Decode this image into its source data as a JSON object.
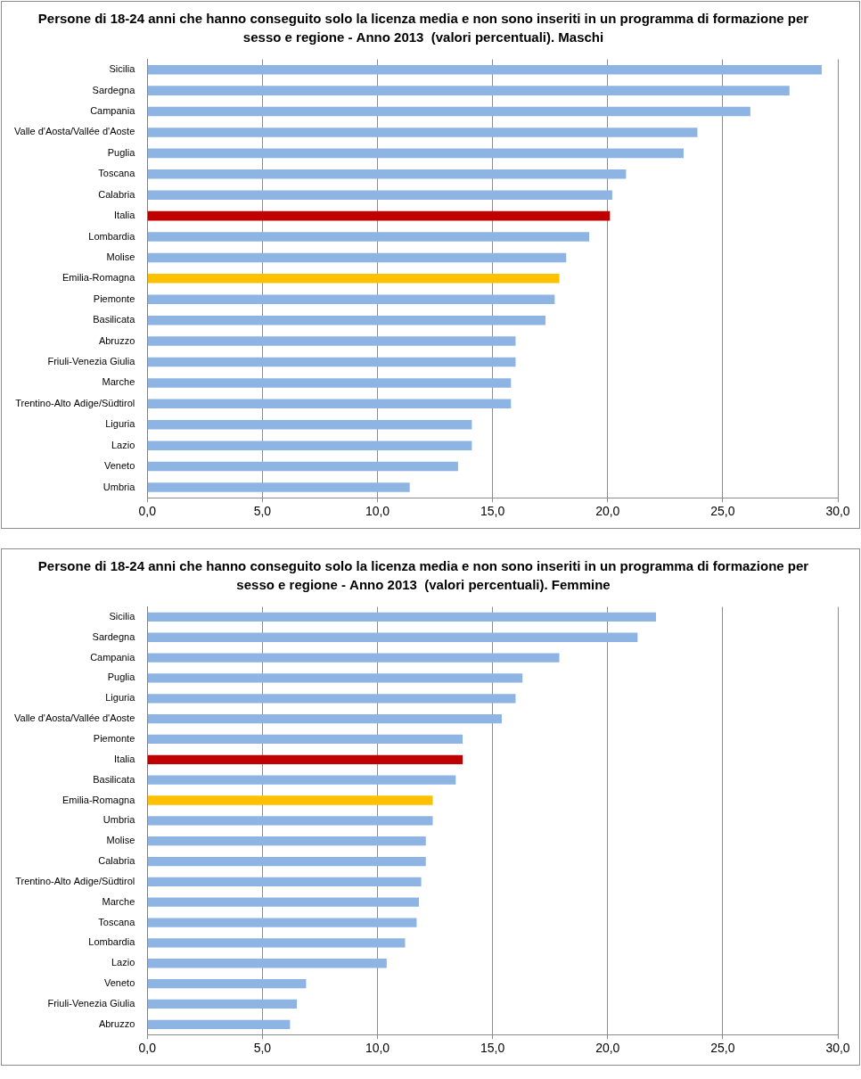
{
  "chart_data": [
    {
      "type": "bar",
      "orientation": "horizontal",
      "title": "Persone di 18-24 anni che hanno conseguito solo la licenza media e non sono inseriti in un programma di formazione per sesso e regione - Anno 2013  (valori percentuali). Maschi",
      "categories": [
        "Sicilia",
        "Sardegna",
        "Campania",
        "Valle d'Aosta/Vallée d'Aoste",
        "Puglia",
        "Toscana",
        "Calabria",
        "Italia",
        "Lombardia",
        "Molise",
        "Emilia-Romagna",
        "Piemonte",
        "Basilicata",
        "Abruzzo",
        "Friuli-Venezia Giulia",
        "Marche",
        "Trentino-Alto Adige/Südtirol",
        "Liguria",
        "Lazio",
        "Veneto",
        "Umbria"
      ],
      "values": [
        29.3,
        27.9,
        26.2,
        23.9,
        23.3,
        20.8,
        20.2,
        20.1,
        19.2,
        18.2,
        17.9,
        17.7,
        17.3,
        16.0,
        16.0,
        15.8,
        15.8,
        14.1,
        14.1,
        13.5,
        11.4
      ],
      "colors": [
        "#8db4e2",
        "#8db4e2",
        "#8db4e2",
        "#8db4e2",
        "#8db4e2",
        "#8db4e2",
        "#8db4e2",
        "#c00000",
        "#8db4e2",
        "#8db4e2",
        "#ffc000",
        "#8db4e2",
        "#8db4e2",
        "#8db4e2",
        "#8db4e2",
        "#8db4e2",
        "#8db4e2",
        "#8db4e2",
        "#8db4e2",
        "#8db4e2",
        "#8db4e2"
      ],
      "xlim": [
        0,
        30
      ],
      "xticks": [
        {
          "value": 0,
          "label": "0,0"
        },
        {
          "value": 5,
          "label": "5,0"
        },
        {
          "value": 10,
          "label": "10,0"
        },
        {
          "value": 15,
          "label": "15,0"
        },
        {
          "value": 20,
          "label": "20,0"
        },
        {
          "value": 25,
          "label": "25,0"
        },
        {
          "value": 30,
          "label": "30,0"
        }
      ],
      "grid": true
    },
    {
      "type": "bar",
      "orientation": "horizontal",
      "title": "Persone di 18-24 anni che hanno conseguito solo la licenza media e non sono inseriti in un programma di formazione per sesso e regione - Anno 2013  (valori percentuali). Femmine",
      "categories": [
        "Sicilia",
        "Sardegna",
        "Campania",
        "Puglia",
        "Liguria",
        "Valle d'Aosta/Vallée d'Aoste",
        "Piemonte",
        "Italia",
        "Basilicata",
        "Emilia-Romagna",
        "Umbria",
        "Molise",
        "Calabria",
        "Trentino-Alto Adige/Südtirol",
        "Marche",
        "Toscana",
        "Lombardia",
        "Lazio",
        "Veneto",
        "Friuli-Venezia Giulia",
        "Abruzzo"
      ],
      "values": [
        22.1,
        21.3,
        17.9,
        16.3,
        16.0,
        15.4,
        13.7,
        13.7,
        13.4,
        12.4,
        12.4,
        12.1,
        12.1,
        11.9,
        11.8,
        11.7,
        11.2,
        10.4,
        6.9,
        6.5,
        6.2
      ],
      "colors": [
        "#8db4e2",
        "#8db4e2",
        "#8db4e2",
        "#8db4e2",
        "#8db4e2",
        "#8db4e2",
        "#8db4e2",
        "#c00000",
        "#8db4e2",
        "#ffc000",
        "#8db4e2",
        "#8db4e2",
        "#8db4e2",
        "#8db4e2",
        "#8db4e2",
        "#8db4e2",
        "#8db4e2",
        "#8db4e2",
        "#8db4e2",
        "#8db4e2",
        "#8db4e2"
      ],
      "xlim": [
        0,
        30
      ],
      "xticks": [
        {
          "value": 0,
          "label": "0,0"
        },
        {
          "value": 5,
          "label": "5,0"
        },
        {
          "value": 10,
          "label": "10,0"
        },
        {
          "value": 15,
          "label": "15,0"
        },
        {
          "value": 20,
          "label": "20,0"
        },
        {
          "value": 25,
          "label": "25,0"
        },
        {
          "value": 30,
          "label": "30,0"
        }
      ],
      "grid": true
    }
  ]
}
